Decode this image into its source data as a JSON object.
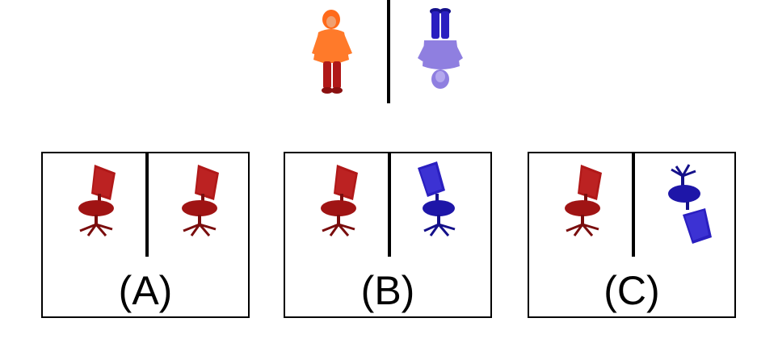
{
  "colors": {
    "red": "#b01818",
    "red_dark": "#7a0d0d",
    "blue": "#2a1fc0",
    "blue_dark": "#14108a",
    "orange": "#ff7a2a",
    "lavender": "#8f7fe0"
  },
  "icons": {
    "reference_left": "person-upright-icon",
    "reference_right": "person-upside-down-icon",
    "chair": "office-chair-icon"
  },
  "options": [
    {
      "label": "(A)"
    },
    {
      "label": "(B)"
    },
    {
      "label": "(C)"
    }
  ]
}
